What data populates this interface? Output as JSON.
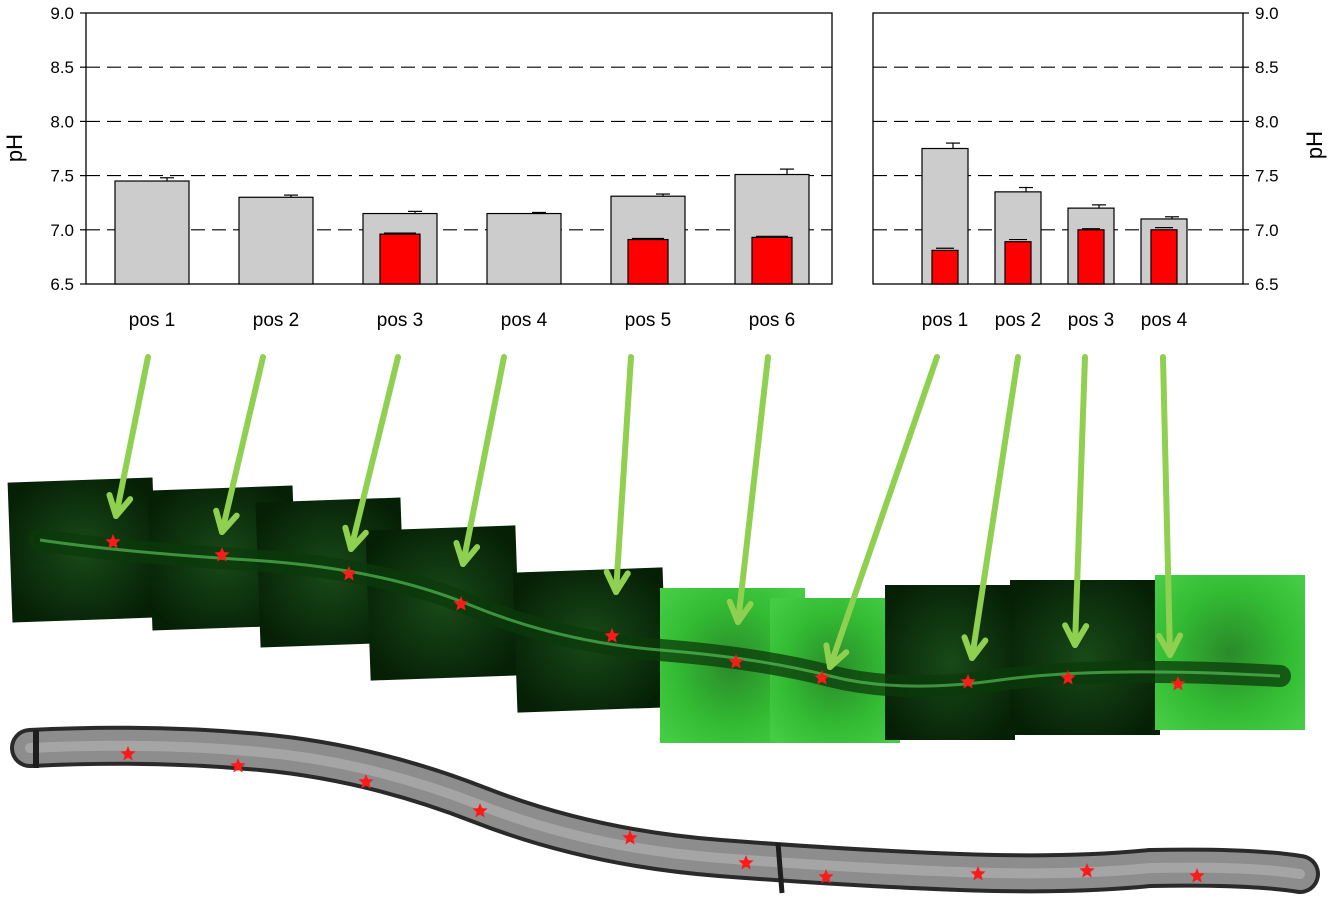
{
  "chart_data": [
    {
      "type": "bar",
      "ylabel": "pH",
      "ylim": [
        6.5,
        9.0
      ],
      "yticks": [
        "6.5",
        "7.0",
        "7.5",
        "8.0",
        "8.5",
        "9.0"
      ],
      "y_axis_side": "left",
      "grid": "dashed horizontal lines at 7.0, 7.5, 8.0, 8.5",
      "categories": [
        "pos 1",
        "pos 2",
        "pos 3",
        "pos 4",
        "pos 5",
        "pos 6"
      ],
      "series": [
        {
          "values": [
            7.45,
            7.3,
            7.15,
            7.15,
            7.31,
            7.51
          ],
          "errors": [
            0.03,
            0.02,
            0.02,
            0.01,
            0.02,
            0.05
          ],
          "color": "#cccccc"
        },
        {
          "values": [
            null,
            null,
            6.96,
            null,
            6.91,
            6.93
          ],
          "errors": [
            0,
            0,
            0.01,
            0,
            0.01,
            0.01
          ],
          "color": "#ff0000"
        }
      ]
    },
    {
      "type": "bar",
      "ylabel": "pH",
      "ylim": [
        6.5,
        9.0
      ],
      "yticks": [
        "6.5",
        "7.0",
        "7.5",
        "8.0",
        "8.5",
        "9.0"
      ],
      "y_axis_side": "right",
      "grid": "dashed horizontal lines at 7.0, 7.5, 8.0, 8.5",
      "categories": [
        "pos 1",
        "pos 2",
        "pos 3",
        "pos 4"
      ],
      "series": [
        {
          "values": [
            7.75,
            7.35,
            7.2,
            7.1
          ],
          "errors": [
            0.05,
            0.04,
            0.03,
            0.02
          ],
          "color": "#cccccc"
        },
        {
          "values": [
            6.81,
            6.89,
            7.0,
            7.0
          ],
          "errors": [
            0.02,
            0.02,
            0.01,
            0.02
          ],
          "color": "#ff0000"
        }
      ]
    }
  ],
  "colors": {
    "grey_bar": "#cccccc",
    "red_bar": "#ff0000",
    "arrow": "#90d050",
    "fluorescence_dark": "#0a2a0a",
    "fluorescence_bright": "#33bb33",
    "star": "#ff1a1a",
    "pollen_tube": "#8a8a8a"
  },
  "icons": {
    "position_marker": "red-star-icon",
    "pointer": "green-arrow-icon"
  }
}
